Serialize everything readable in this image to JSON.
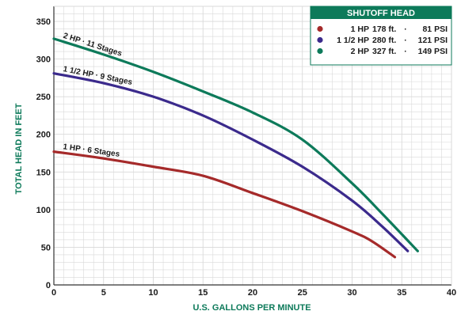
{
  "chart_data": {
    "type": "line",
    "title": "",
    "xlabel": "U.S. GALLONS PER MINUTE",
    "ylabel": "TOTAL HEAD IN FEET",
    "xlim": [
      0,
      40
    ],
    "ylim": [
      0,
      370
    ],
    "xticks": [
      0,
      5,
      10,
      15,
      20,
      25,
      30,
      35,
      40
    ],
    "yticks": [
      0,
      50,
      100,
      150,
      200,
      250,
      300,
      350
    ],
    "grid": true,
    "legend": {
      "title": "SHUTOFF HEAD",
      "placement": "top-right",
      "entries": [
        {
          "model": "1 HP",
          "feet": "178 ft.",
          "psi": "81 PSI"
        },
        {
          "model": "1 1/2 HP",
          "feet": "280 ft.",
          "psi": "121 PSI"
        },
        {
          "model": "2 HP",
          "feet": "327 ft.",
          "psi": "149 PSI"
        }
      ]
    },
    "series": [
      {
        "name": "1 HP · 6 Stages",
        "color": "#a52a2a",
        "x": [
          0,
          5,
          10,
          15,
          20,
          25,
          30,
          32,
          34.3
        ],
        "y": [
          177,
          168,
          157,
          145,
          122,
          98,
          71,
          58,
          37
        ]
      },
      {
        "name": "1 1/2 HP · 9 Stages",
        "color": "#3b2a8c",
        "x": [
          0,
          5,
          10,
          15,
          20,
          25,
          30,
          33,
          35.6
        ],
        "y": [
          281,
          268,
          250,
          225,
          193,
          157,
          112,
          78,
          45
        ]
      },
      {
        "name": "2 HP · 11 Stages",
        "color": "#0d7a5a",
        "x": [
          0,
          5,
          10,
          15,
          20,
          25,
          30,
          33,
          36.6
        ],
        "y": [
          327,
          306,
          283,
          257,
          229,
          193,
          135,
          95,
          45
        ]
      }
    ]
  },
  "colors": {
    "accent": "#0d7a5a",
    "grid": "#d9d9d9",
    "axis": "#333333"
  }
}
